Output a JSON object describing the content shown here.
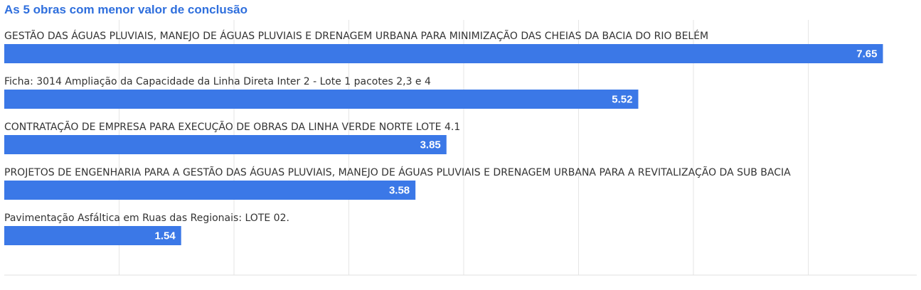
{
  "chart_data": {
    "type": "bar",
    "orientation": "horizontal",
    "title": "As 5 obras com menor valor de conclusão",
    "categories": [
      "GESTÃO DAS ÁGUAS PLUVIAIS, MANEJO DE ÁGUAS PLUVIAIS E DRENAGEM URBANA PARA MINIMIZAÇÃO DAS CHEIAS DA BACIA DO RIO BELÉM",
      "Ficha: 3014 Ampliação da Capacidade da Linha Direta Inter 2 - Lote 1 pacotes 2,3 e 4",
      "CONTRATAÇÃO DE EMPRESA PARA EXECUÇÃO DE OBRAS DA LINHA VERDE NORTE LOTE 4.1",
      "PROJETOS DE ENGENHARIA PARA A GESTÃO DAS ÁGUAS PLUVIAIS, MANEJO DE ÁGUAS PLUVIAIS E DRENAGEM URBANA PARA A REVITALIZAÇÃO DA SUB BACIA",
      "Pavimentação Asfáltica em Ruas das Regionais: LOTE 02."
    ],
    "values": [
      7.65,
      5.52,
      3.85,
      3.58,
      1.54
    ],
    "value_labels": [
      "7.65",
      "5.52",
      "3.85",
      "3.58",
      "1.54"
    ],
    "xlim": [
      0,
      8
    ],
    "grid": true,
    "legend": "none",
    "bar_color": "#3b78e7",
    "title_color": "#2f6fdd"
  }
}
